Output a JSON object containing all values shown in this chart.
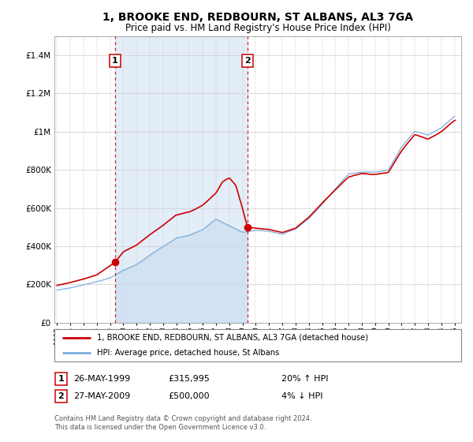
{
  "title": "1, BROOKE END, REDBOURN, ST ALBANS, AL3 7GA",
  "subtitle": "Price paid vs. HM Land Registry's House Price Index (HPI)",
  "sale1_year": 1999.38,
  "sale1_price": 315995,
  "sale2_year": 2009.38,
  "sale2_price": 500000,
  "legend_property": "1, BROOKE END, REDBOURN, ST ALBANS, AL3 7GA (detached house)",
  "legend_hpi": "HPI: Average price, detached house, St Albans",
  "footer": "Contains HM Land Registry data © Crown copyright and database right 2024.\nThis data is licensed under the Open Government Licence v3.0.",
  "property_color": "#cc0000",
  "hpi_color": "#7aadde",
  "hpi_fill_color": "#c8dcf0",
  "vline_color": "#cc0000",
  "background_color": "#f0f4f8",
  "plot_bg": "#f5f5f5",
  "ylim": [
    0,
    1500000
  ],
  "yticks": [
    0,
    200000,
    400000,
    600000,
    800000,
    1000000,
    1200000,
    1400000
  ],
  "xlim_start": 1994.8,
  "xlim_end": 2025.5,
  "title_fontsize": 10,
  "subtitle_fontsize": 8.5
}
